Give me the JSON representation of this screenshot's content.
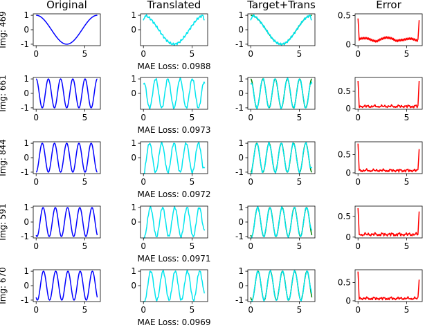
{
  "figure": {
    "column_titles": [
      "Original",
      "Translated",
      "Target+Trans",
      "Error"
    ],
    "row_labels": [
      "Img: 469",
      "Img: 661",
      "Img: 844",
      "Img: 591",
      "Img: 670"
    ],
    "mae_labels": [
      "MAE Loss: 0.0988",
      "MAE Loss: 0.0973",
      "MAE Loss: 0.0972",
      "MAE Loss: 0.0971",
      "MAE Loss: 0.0969"
    ]
  },
  "colors": {
    "original": "#0000ff",
    "translated": "#00e5ee",
    "target": "#008000",
    "error": "#ff0000",
    "axes": "#000000"
  },
  "chart_data": [
    {
      "type": "line",
      "row": 0,
      "image": "Img: 469",
      "mae": 0.0988,
      "xlim": [
        -0.3,
        6.6
      ],
      "x_ticks": [
        0,
        5
      ],
      "signal": {
        "frequency": 1,
        "phase": 1.5708,
        "x_range": [
          0,
          6.283
        ]
      },
      "panels": [
        {
          "title": "Original",
          "ylim": [
            -1.1,
            1.1
          ],
          "y_ticks": [
            -1,
            0,
            1
          ],
          "series": [
            {
              "name": "original",
              "formula": "sin(f*x+phase)"
            }
          ]
        },
        {
          "title": "Translated",
          "ylim": [
            -1.1,
            1.1
          ],
          "y_ticks": [
            0,
            1
          ],
          "series": [
            {
              "name": "translated",
              "formula": "sin(f*x+phase)+error-ripple"
            }
          ]
        },
        {
          "title": "Target+Trans",
          "ylim": [
            -1.1,
            1.1
          ],
          "y_ticks": [
            -1,
            0,
            1
          ],
          "series": [
            {
              "name": "target"
            },
            {
              "name": "translated"
            }
          ]
        },
        {
          "title": "Error",
          "ylim": [
            -0.02,
            0.53
          ],
          "y_ticks": [
            0.0,
            0.5
          ],
          "series": [
            {
              "name": "abs_error",
              "edge_spikes": [
                0.45,
                0.42
              ],
              "mean_level": 0.12
            }
          ]
        }
      ]
    },
    {
      "type": "line",
      "row": 1,
      "image": "Img: 661",
      "mae": 0.0973,
      "xlim": [
        -0.3,
        6.6
      ],
      "x_ticks": [
        0,
        5
      ],
      "signal": {
        "frequency": 5,
        "phase": 1.5708,
        "x_range": [
          0,
          6.283
        ]
      },
      "panels": [
        {
          "title": "Original",
          "ylim": [
            -1.1,
            1.1
          ],
          "y_ticks": [
            -1,
            0,
            1
          ],
          "series": [
            {
              "name": "original"
            }
          ]
        },
        {
          "title": "Translated",
          "ylim": [
            -1.1,
            1.1
          ],
          "y_ticks": [
            0,
            1
          ],
          "series": [
            {
              "name": "translated"
            }
          ]
        },
        {
          "title": "Target+Trans",
          "ylim": [
            -1.1,
            1.1
          ],
          "y_ticks": [
            -1,
            0,
            1
          ],
          "series": [
            {
              "name": "target"
            },
            {
              "name": "translated"
            }
          ]
        },
        {
          "title": "Error",
          "ylim": [
            -0.02,
            0.9
          ],
          "y_ticks": [
            0.0,
            0.5
          ],
          "series": [
            {
              "name": "abs_error",
              "edge_spikes": [
                0.8,
                0.8
              ],
              "mean_level": 0.07
            }
          ]
        }
      ]
    },
    {
      "type": "line",
      "row": 2,
      "image": "Img: 844",
      "mae": 0.0972,
      "xlim": [
        -0.3,
        6.6
      ],
      "x_ticks": [
        0,
        5
      ],
      "signal": {
        "frequency": 5,
        "phase": -1.5708,
        "x_range": [
          0,
          6.283
        ]
      },
      "panels": [
        {
          "title": "Original",
          "ylim": [
            -1.1,
            1.1
          ],
          "y_ticks": [
            -1,
            0,
            1
          ],
          "series": [
            {
              "name": "original"
            }
          ]
        },
        {
          "title": "Translated",
          "ylim": [
            -1.1,
            1.1
          ],
          "y_ticks": [
            0,
            1
          ],
          "series": [
            {
              "name": "translated"
            }
          ]
        },
        {
          "title": "Target+Trans",
          "ylim": [
            -1.1,
            1.1
          ],
          "y_ticks": [
            -1,
            0,
            1
          ],
          "series": [
            {
              "name": "target"
            },
            {
              "name": "translated"
            }
          ]
        },
        {
          "title": "Error",
          "ylim": [
            -0.02,
            0.85
          ],
          "y_ticks": [
            0.0,
            0.5
          ],
          "series": [
            {
              "name": "abs_error",
              "edge_spikes": [
                0.8,
                0.65
              ],
              "mean_level": 0.07
            }
          ]
        }
      ]
    },
    {
      "type": "line",
      "row": 3,
      "image": "Img: 591",
      "mae": 0.0971,
      "xlim": [
        -0.3,
        6.6
      ],
      "x_ticks": [
        0,
        5
      ],
      "signal": {
        "frequency": 5,
        "phase": -2.0,
        "x_range": [
          0,
          6.283
        ]
      },
      "panels": [
        {
          "title": "Original",
          "ylim": [
            -1.1,
            1.1
          ],
          "y_ticks": [
            -1,
            0,
            1
          ],
          "series": [
            {
              "name": "original"
            }
          ]
        },
        {
          "title": "Translated",
          "ylim": [
            -1.1,
            1.1
          ],
          "y_ticks": [
            0,
            1
          ],
          "series": [
            {
              "name": "translated"
            }
          ]
        },
        {
          "title": "Target+Trans",
          "ylim": [
            -1.1,
            1.1
          ],
          "y_ticks": [
            -1,
            0,
            1
          ],
          "series": [
            {
              "name": "target"
            },
            {
              "name": "translated"
            }
          ]
        },
        {
          "title": "Error",
          "ylim": [
            -0.02,
            0.75
          ],
          "y_ticks": [
            0.0,
            0.5
          ],
          "series": [
            {
              "name": "abs_error",
              "edge_spikes": [
                0.7,
                0.62
              ],
              "mean_level": 0.07
            }
          ]
        }
      ]
    },
    {
      "type": "line",
      "row": 4,
      "image": "Img: 670",
      "mae": 0.0969,
      "xlim": [
        -0.3,
        6.6
      ],
      "x_ticks": [
        0,
        5
      ],
      "signal": {
        "frequency": 5,
        "phase": -2.2,
        "x_range": [
          0,
          6.283
        ]
      },
      "panels": [
        {
          "title": "Original",
          "ylim": [
            -1.1,
            1.1
          ],
          "y_ticks": [
            -1,
            0,
            1
          ],
          "series": [
            {
              "name": "original"
            }
          ]
        },
        {
          "title": "Translated",
          "ylim": [
            -1.1,
            1.1
          ],
          "y_ticks": [
            0,
            1
          ],
          "series": [
            {
              "name": "translated"
            }
          ]
        },
        {
          "title": "Target+Trans",
          "ylim": [
            -1.1,
            1.1
          ],
          "y_ticks": [
            -1,
            0,
            1
          ],
          "series": [
            {
              "name": "target"
            },
            {
              "name": "translated"
            }
          ]
        },
        {
          "title": "Error",
          "ylim": [
            -0.02,
            0.85
          ],
          "y_ticks": [
            0.0,
            0.5
          ],
          "series": [
            {
              "name": "abs_error",
              "edge_spikes": [
                0.8,
                0.58
              ],
              "mean_level": 0.07
            }
          ]
        }
      ]
    }
  ]
}
